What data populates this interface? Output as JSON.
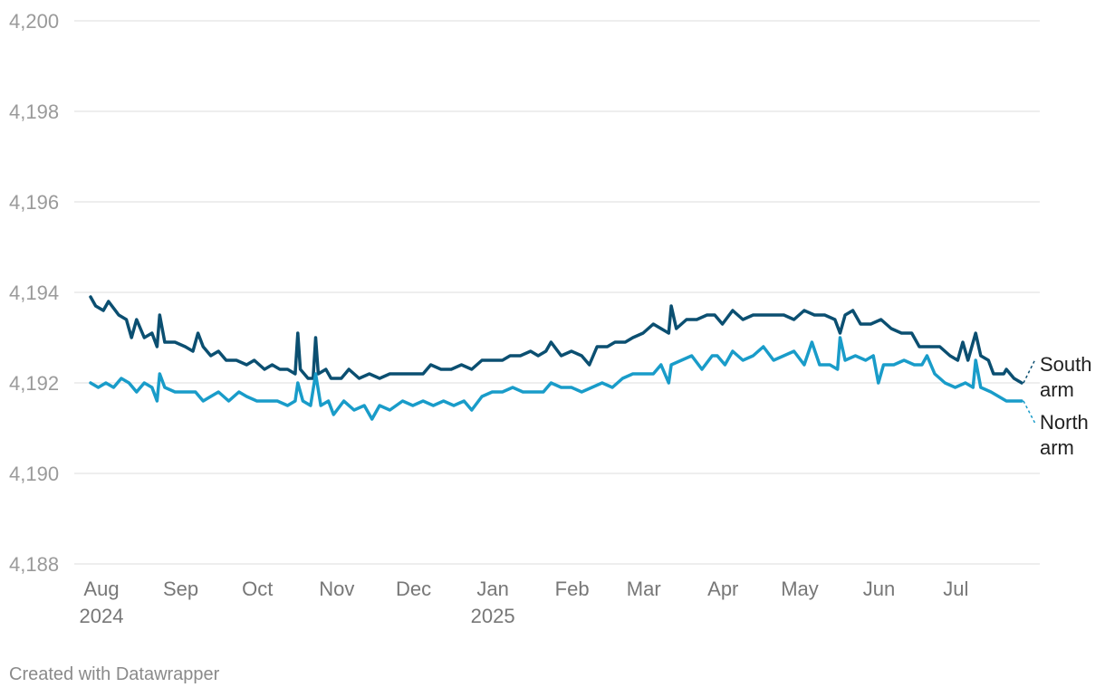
{
  "credit": "Created with Datawrapper",
  "chart_data": {
    "type": "line",
    "title": "",
    "xlabel": "",
    "ylabel": "",
    "x_range": [
      "2024-08-01",
      "2025-07-31"
    ],
    "ylim": [
      4188,
      4200
    ],
    "y_ticks": [
      {
        "value": 4200,
        "label": "4,200"
      },
      {
        "value": 4198,
        "label": "4,198"
      },
      {
        "value": 4196,
        "label": "4,196"
      },
      {
        "value": 4194,
        "label": "4,194"
      },
      {
        "value": 4192,
        "label": "4,192"
      },
      {
        "value": 4190,
        "label": "4,190"
      },
      {
        "value": 4188,
        "label": "4,188"
      }
    ],
    "x_ticks": [
      {
        "date": "2024-08-01",
        "label": "Aug",
        "sublabel": "2024"
      },
      {
        "date": "2024-09-01",
        "label": "Sep"
      },
      {
        "date": "2024-10-01",
        "label": "Oct"
      },
      {
        "date": "2024-11-01",
        "label": "Nov"
      },
      {
        "date": "2024-12-01",
        "label": "Dec"
      },
      {
        "date": "2025-01-01",
        "label": "Jan",
        "sublabel": "2025"
      },
      {
        "date": "2025-02-01",
        "label": "Feb"
      },
      {
        "date": "2025-03-01",
        "label": "Mar"
      },
      {
        "date": "2025-04-01",
        "label": "Apr"
      },
      {
        "date": "2025-05-01",
        "label": "May"
      },
      {
        "date": "2025-06-01",
        "label": "Jun"
      },
      {
        "date": "2025-07-01",
        "label": "Jul"
      }
    ],
    "grid": true,
    "legend": "direct labels at right end of lines",
    "series": [
      {
        "name": "South arm",
        "label_lines": [
          "South",
          "arm"
        ],
        "color": "#0b4f71",
        "points": [
          [
            "2024-08-01",
            4193.9
          ],
          [
            "2024-08-03",
            4193.7
          ],
          [
            "2024-08-06",
            4193.6
          ],
          [
            "2024-08-08",
            4193.8
          ],
          [
            "2024-08-12",
            4193.5
          ],
          [
            "2024-08-15",
            4193.4
          ],
          [
            "2024-08-17",
            4193.0
          ],
          [
            "2024-08-19",
            4193.4
          ],
          [
            "2024-08-22",
            4193.0
          ],
          [
            "2024-08-25",
            4193.1
          ],
          [
            "2024-08-27",
            4192.8
          ],
          [
            "2024-08-28",
            4193.5
          ],
          [
            "2024-08-30",
            4192.9
          ],
          [
            "2024-09-03",
            4192.9
          ],
          [
            "2024-09-07",
            4192.8
          ],
          [
            "2024-09-10",
            4192.7
          ],
          [
            "2024-09-12",
            4193.1
          ],
          [
            "2024-09-14",
            4192.8
          ],
          [
            "2024-09-17",
            4192.6
          ],
          [
            "2024-09-20",
            4192.7
          ],
          [
            "2024-09-23",
            4192.5
          ],
          [
            "2024-09-27",
            4192.5
          ],
          [
            "2024-10-01",
            4192.4
          ],
          [
            "2024-10-04",
            4192.5
          ],
          [
            "2024-10-08",
            4192.3
          ],
          [
            "2024-10-11",
            4192.4
          ],
          [
            "2024-10-14",
            4192.3
          ],
          [
            "2024-10-17",
            4192.3
          ],
          [
            "2024-10-20",
            4192.2
          ],
          [
            "2024-10-21",
            4193.1
          ],
          [
            "2024-10-22",
            4192.3
          ],
          [
            "2024-10-25",
            4192.1
          ],
          [
            "2024-10-27",
            4192.1
          ],
          [
            "2024-10-28",
            4193.0
          ],
          [
            "2024-10-29",
            4192.2
          ],
          [
            "2024-11-01",
            4192.3
          ],
          [
            "2024-11-03",
            4192.1
          ],
          [
            "2024-11-07",
            4192.1
          ],
          [
            "2024-11-10",
            4192.3
          ],
          [
            "2024-11-14",
            4192.1
          ],
          [
            "2024-11-18",
            4192.2
          ],
          [
            "2024-11-22",
            4192.1
          ],
          [
            "2024-11-26",
            4192.2
          ],
          [
            "2024-12-01",
            4192.2
          ],
          [
            "2024-12-05",
            4192.2
          ],
          [
            "2024-12-09",
            4192.2
          ],
          [
            "2024-12-12",
            4192.4
          ],
          [
            "2024-12-16",
            4192.3
          ],
          [
            "2024-12-20",
            4192.3
          ],
          [
            "2024-12-24",
            4192.4
          ],
          [
            "2024-12-28",
            4192.3
          ],
          [
            "2025-01-01",
            4192.5
          ],
          [
            "2025-01-05",
            4192.5
          ],
          [
            "2025-01-09",
            4192.5
          ],
          [
            "2025-01-12",
            4192.6
          ],
          [
            "2025-01-16",
            4192.6
          ],
          [
            "2025-01-20",
            4192.7
          ],
          [
            "2025-01-23",
            4192.6
          ],
          [
            "2025-01-26",
            4192.7
          ],
          [
            "2025-01-28",
            4192.9
          ],
          [
            "2025-02-01",
            4192.6
          ],
          [
            "2025-02-05",
            4192.7
          ],
          [
            "2025-02-09",
            4192.6
          ],
          [
            "2025-02-12",
            4192.4
          ],
          [
            "2025-02-15",
            4192.8
          ],
          [
            "2025-02-19",
            4192.8
          ],
          [
            "2025-02-22",
            4192.9
          ],
          [
            "2025-02-26",
            4192.9
          ],
          [
            "2025-03-01",
            4193.0
          ],
          [
            "2025-03-05",
            4193.1
          ],
          [
            "2025-03-09",
            4193.3
          ],
          [
            "2025-03-12",
            4193.2
          ],
          [
            "2025-03-15",
            4193.1
          ],
          [
            "2025-03-16",
            4193.7
          ],
          [
            "2025-03-18",
            4193.2
          ],
          [
            "2025-03-22",
            4193.4
          ],
          [
            "2025-03-26",
            4193.4
          ],
          [
            "2025-03-30",
            4193.5
          ],
          [
            "2025-04-02",
            4193.5
          ],
          [
            "2025-04-05",
            4193.3
          ],
          [
            "2025-04-09",
            4193.6
          ],
          [
            "2025-04-13",
            4193.4
          ],
          [
            "2025-04-17",
            4193.5
          ],
          [
            "2025-04-21",
            4193.5
          ],
          [
            "2025-04-25",
            4193.5
          ],
          [
            "2025-04-29",
            4193.5
          ],
          [
            "2025-05-03",
            4193.4
          ],
          [
            "2025-05-07",
            4193.6
          ],
          [
            "2025-05-11",
            4193.5
          ],
          [
            "2025-05-15",
            4193.5
          ],
          [
            "2025-05-19",
            4193.4
          ],
          [
            "2025-05-21",
            4193.1
          ],
          [
            "2025-05-23",
            4193.5
          ],
          [
            "2025-05-26",
            4193.6
          ],
          [
            "2025-05-29",
            4193.3
          ],
          [
            "2025-06-02",
            4193.3
          ],
          [
            "2025-06-06",
            4193.4
          ],
          [
            "2025-06-10",
            4193.2
          ],
          [
            "2025-06-14",
            4193.1
          ],
          [
            "2025-06-18",
            4193.1
          ],
          [
            "2025-06-21",
            4192.8
          ],
          [
            "2025-06-25",
            4192.8
          ],
          [
            "2025-06-29",
            4192.8
          ],
          [
            "2025-07-03",
            4192.6
          ],
          [
            "2025-07-06",
            4192.5
          ],
          [
            "2025-07-08",
            4192.9
          ],
          [
            "2025-07-10",
            4192.5
          ],
          [
            "2025-07-13",
            4193.1
          ],
          [
            "2025-07-15",
            4192.6
          ],
          [
            "2025-07-18",
            4192.5
          ],
          [
            "2025-07-20",
            4192.2
          ],
          [
            "2025-07-24",
            4192.2
          ],
          [
            "2025-07-25",
            4192.3
          ],
          [
            "2025-07-28",
            4192.1
          ],
          [
            "2025-07-31",
            4192.0
          ]
        ]
      },
      {
        "name": "North arm",
        "label_lines": [
          "North",
          "arm"
        ],
        "color": "#199cc9",
        "points": [
          [
            "2024-08-01",
            4192.0
          ],
          [
            "2024-08-04",
            4191.9
          ],
          [
            "2024-08-07",
            4192.0
          ],
          [
            "2024-08-10",
            4191.9
          ],
          [
            "2024-08-13",
            4192.1
          ],
          [
            "2024-08-16",
            4192.0
          ],
          [
            "2024-08-19",
            4191.8
          ],
          [
            "2024-08-22",
            4192.0
          ],
          [
            "2024-08-25",
            4191.9
          ],
          [
            "2024-08-27",
            4191.6
          ],
          [
            "2024-08-28",
            4192.2
          ],
          [
            "2024-08-30",
            4191.9
          ],
          [
            "2024-09-03",
            4191.8
          ],
          [
            "2024-09-07",
            4191.8
          ],
          [
            "2024-09-11",
            4191.8
          ],
          [
            "2024-09-14",
            4191.6
          ],
          [
            "2024-09-17",
            4191.7
          ],
          [
            "2024-09-20",
            4191.8
          ],
          [
            "2024-09-24",
            4191.6
          ],
          [
            "2024-09-28",
            4191.8
          ],
          [
            "2024-10-01",
            4191.7
          ],
          [
            "2024-10-05",
            4191.6
          ],
          [
            "2024-10-09",
            4191.6
          ],
          [
            "2024-10-13",
            4191.6
          ],
          [
            "2024-10-17",
            4191.5
          ],
          [
            "2024-10-20",
            4191.6
          ],
          [
            "2024-10-21",
            4192.0
          ],
          [
            "2024-10-23",
            4191.6
          ],
          [
            "2024-10-26",
            4191.5
          ],
          [
            "2024-10-28",
            4192.2
          ],
          [
            "2024-10-30",
            4191.5
          ],
          [
            "2024-11-02",
            4191.6
          ],
          [
            "2024-11-04",
            4191.3
          ],
          [
            "2024-11-08",
            4191.6
          ],
          [
            "2024-11-12",
            4191.4
          ],
          [
            "2024-11-16",
            4191.5
          ],
          [
            "2024-11-19",
            4191.2
          ],
          [
            "2024-11-22",
            4191.5
          ],
          [
            "2024-11-26",
            4191.4
          ],
          [
            "2024-12-01",
            4191.6
          ],
          [
            "2024-12-05",
            4191.5
          ],
          [
            "2024-12-09",
            4191.6
          ],
          [
            "2024-12-13",
            4191.5
          ],
          [
            "2024-12-17",
            4191.6
          ],
          [
            "2024-12-21",
            4191.5
          ],
          [
            "2024-12-25",
            4191.6
          ],
          [
            "2024-12-28",
            4191.4
          ],
          [
            "2025-01-01",
            4191.7
          ],
          [
            "2025-01-05",
            4191.8
          ],
          [
            "2025-01-09",
            4191.8
          ],
          [
            "2025-01-13",
            4191.9
          ],
          [
            "2025-01-17",
            4191.8
          ],
          [
            "2025-01-21",
            4191.8
          ],
          [
            "2025-01-25",
            4191.8
          ],
          [
            "2025-01-28",
            4192.0
          ],
          [
            "2025-02-01",
            4191.9
          ],
          [
            "2025-02-05",
            4191.9
          ],
          [
            "2025-02-09",
            4191.8
          ],
          [
            "2025-02-13",
            4191.9
          ],
          [
            "2025-02-17",
            4192.0
          ],
          [
            "2025-02-21",
            4191.9
          ],
          [
            "2025-02-25",
            4192.1
          ],
          [
            "2025-03-01",
            4192.2
          ],
          [
            "2025-03-05",
            4192.2
          ],
          [
            "2025-03-09",
            4192.2
          ],
          [
            "2025-03-12",
            4192.4
          ],
          [
            "2025-03-15",
            4192.0
          ],
          [
            "2025-03-16",
            4192.4
          ],
          [
            "2025-03-20",
            4192.5
          ],
          [
            "2025-03-24",
            4192.6
          ],
          [
            "2025-03-28",
            4192.3
          ],
          [
            "2025-04-01",
            4192.6
          ],
          [
            "2025-04-03",
            4192.6
          ],
          [
            "2025-04-06",
            4192.4
          ],
          [
            "2025-04-09",
            4192.7
          ],
          [
            "2025-04-13",
            4192.5
          ],
          [
            "2025-04-17",
            4192.6
          ],
          [
            "2025-04-21",
            4192.8
          ],
          [
            "2025-04-25",
            4192.5
          ],
          [
            "2025-04-29",
            4192.6
          ],
          [
            "2025-05-03",
            4192.7
          ],
          [
            "2025-05-07",
            4192.4
          ],
          [
            "2025-05-10",
            4192.9
          ],
          [
            "2025-05-13",
            4192.4
          ],
          [
            "2025-05-17",
            4192.4
          ],
          [
            "2025-05-20",
            4192.3
          ],
          [
            "2025-05-21",
            4193.0
          ],
          [
            "2025-05-23",
            4192.5
          ],
          [
            "2025-05-27",
            4192.6
          ],
          [
            "2025-05-31",
            4192.5
          ],
          [
            "2025-06-03",
            4192.6
          ],
          [
            "2025-06-05",
            4192.0
          ],
          [
            "2025-06-07",
            4192.4
          ],
          [
            "2025-06-11",
            4192.4
          ],
          [
            "2025-06-15",
            4192.5
          ],
          [
            "2025-06-19",
            4192.4
          ],
          [
            "2025-06-22",
            4192.4
          ],
          [
            "2025-06-24",
            4192.6
          ],
          [
            "2025-06-27",
            4192.2
          ],
          [
            "2025-07-01",
            4192.0
          ],
          [
            "2025-07-05",
            4191.9
          ],
          [
            "2025-07-09",
            4192.0
          ],
          [
            "2025-07-12",
            4191.9
          ],
          [
            "2025-07-13",
            4192.5
          ],
          [
            "2025-07-15",
            4191.9
          ],
          [
            "2025-07-19",
            4191.8
          ],
          [
            "2025-07-22",
            4191.7
          ],
          [
            "2025-07-25",
            4191.6
          ],
          [
            "2025-07-28",
            4191.6
          ],
          [
            "2025-07-31",
            4191.6
          ]
        ]
      }
    ]
  }
}
